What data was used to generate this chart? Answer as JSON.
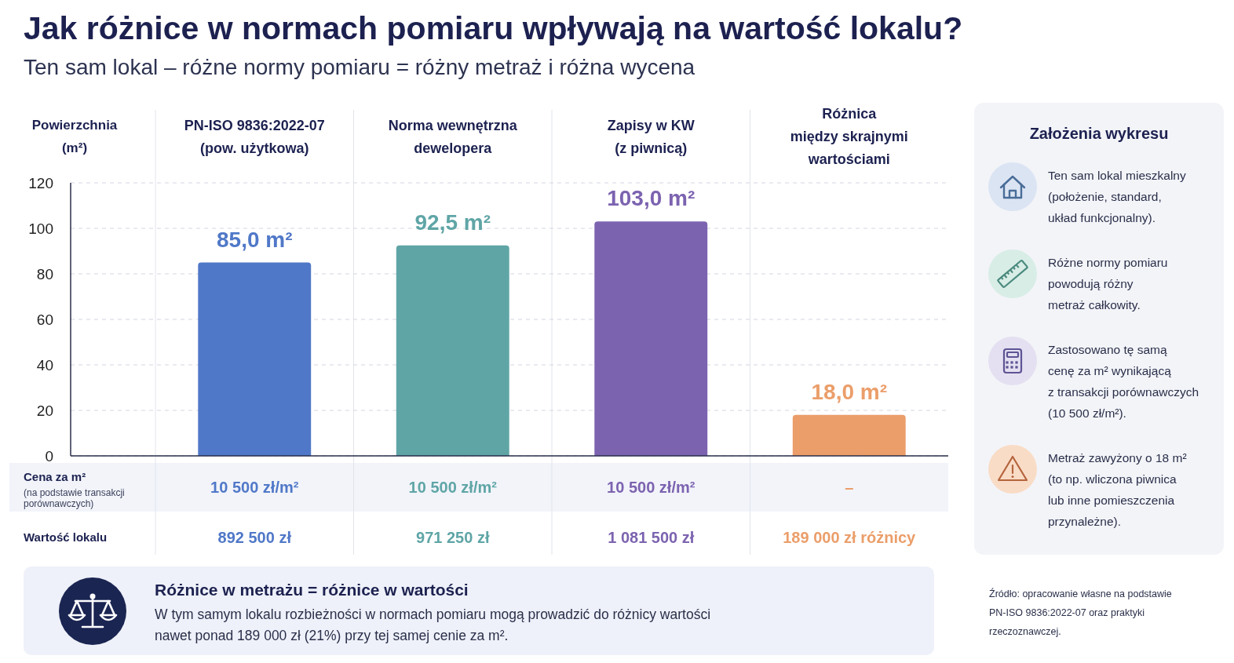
{
  "chart_data": {
    "type": "bar",
    "title": "Jak różnice w normach pomiaru wpływają na wartość lokalu?",
    "subtitle": "Ten sam lokal – różne normy pomiaru = różny metraż i różna wycena",
    "ylabel": "Powierzchnia\n(m²)",
    "categories": [
      "PN-ISO 9836:2022-07\n(pow. użytkowa)",
      "Norma wewnętrzna\ndewelopera",
      "Zapisy w KW\n(z piwnicą)",
      "Różnica\nmiędzy skrajnymi\nwartościami"
    ],
    "values": [
      85,
      92.5,
      103,
      18
    ],
    "colors": [
      "#5078c8",
      "#5fa5a6",
      "#7c63b0",
      "#eb9e6a"
    ],
    "value_labels": [
      "85,0 m²",
      "92,5 m²",
      "103,0 m²",
      "18,0 m²"
    ],
    "ylim": [
      0,
      120
    ],
    "yticks": [
      0,
      20,
      40,
      60,
      80,
      100,
      120
    ],
    "grid": "y",
    "annotations": [
      "Cena za m²",
      "(na podstawie transakcji\nporównawczych)",
      "10 500 zł/m²",
      "10 500 zł/m²",
      "10 500 zł/m²",
      "–",
      "Wartość lokalu",
      "892 500 zł",
      "971 250 zł",
      "1 081 500 zł",
      "189 000 zł różnicy",
      "Założenia wykresu",
      "Ten sam lokal mieszkalny\n(położenie, standard,\nukład funkcjonalny).",
      "Różne normy pomiaru\npowodują różny\nmetraż całkowity.",
      "Zastosowano tę samą\ncenę za m² wynikającą\nz transakcji porównawczych\n(10 500 zł/m²).",
      "Metraż zawyżony o 18 m²\n(to np. wliczona piwnica\nlub inne pomieszczenia\nprzynależne).",
      "Różnice w metrażu = różnice w wartości",
      "W tym samym lokalu rozbieżności w normach pomiaru mogą prowadzić do różnicy wartości\nnawet ponad 189 000 zł (21%) przy tej samej cenie za m².",
      "Źródło: opracowanie własne na podstawie\nPN-ISO 9836:2022-07 oraz praktyki\nrzeczoznawczej."
    ]
  }
}
